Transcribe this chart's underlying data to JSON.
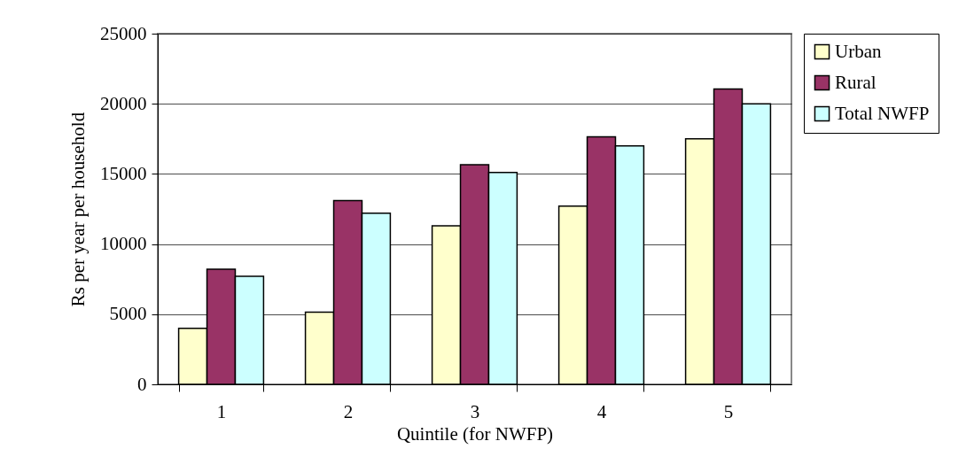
{
  "chart_data": {
    "type": "bar",
    "xlabel": "Quintile (for NWFP)",
    "ylabel": "Rs per year per household",
    "categories": [
      "1",
      "2",
      "3",
      "4",
      "5"
    ],
    "series": [
      {
        "name": "Urban",
        "color": "#ffffcc",
        "values": [
          4000,
          5150,
          11300,
          12700,
          17500
        ]
      },
      {
        "name": "Rural",
        "color": "#993366",
        "values": [
          8200,
          13100,
          15650,
          17650,
          21050
        ]
      },
      {
        "name": "Total NWFP",
        "color": "#ccffff",
        "values": [
          7700,
          12200,
          15100,
          17000,
          20000
        ]
      }
    ],
    "ylim": [
      0,
      25000
    ],
    "yticks": [
      0,
      5000,
      10000,
      15000,
      20000,
      25000
    ],
    "grid": "y",
    "legend": "right"
  }
}
